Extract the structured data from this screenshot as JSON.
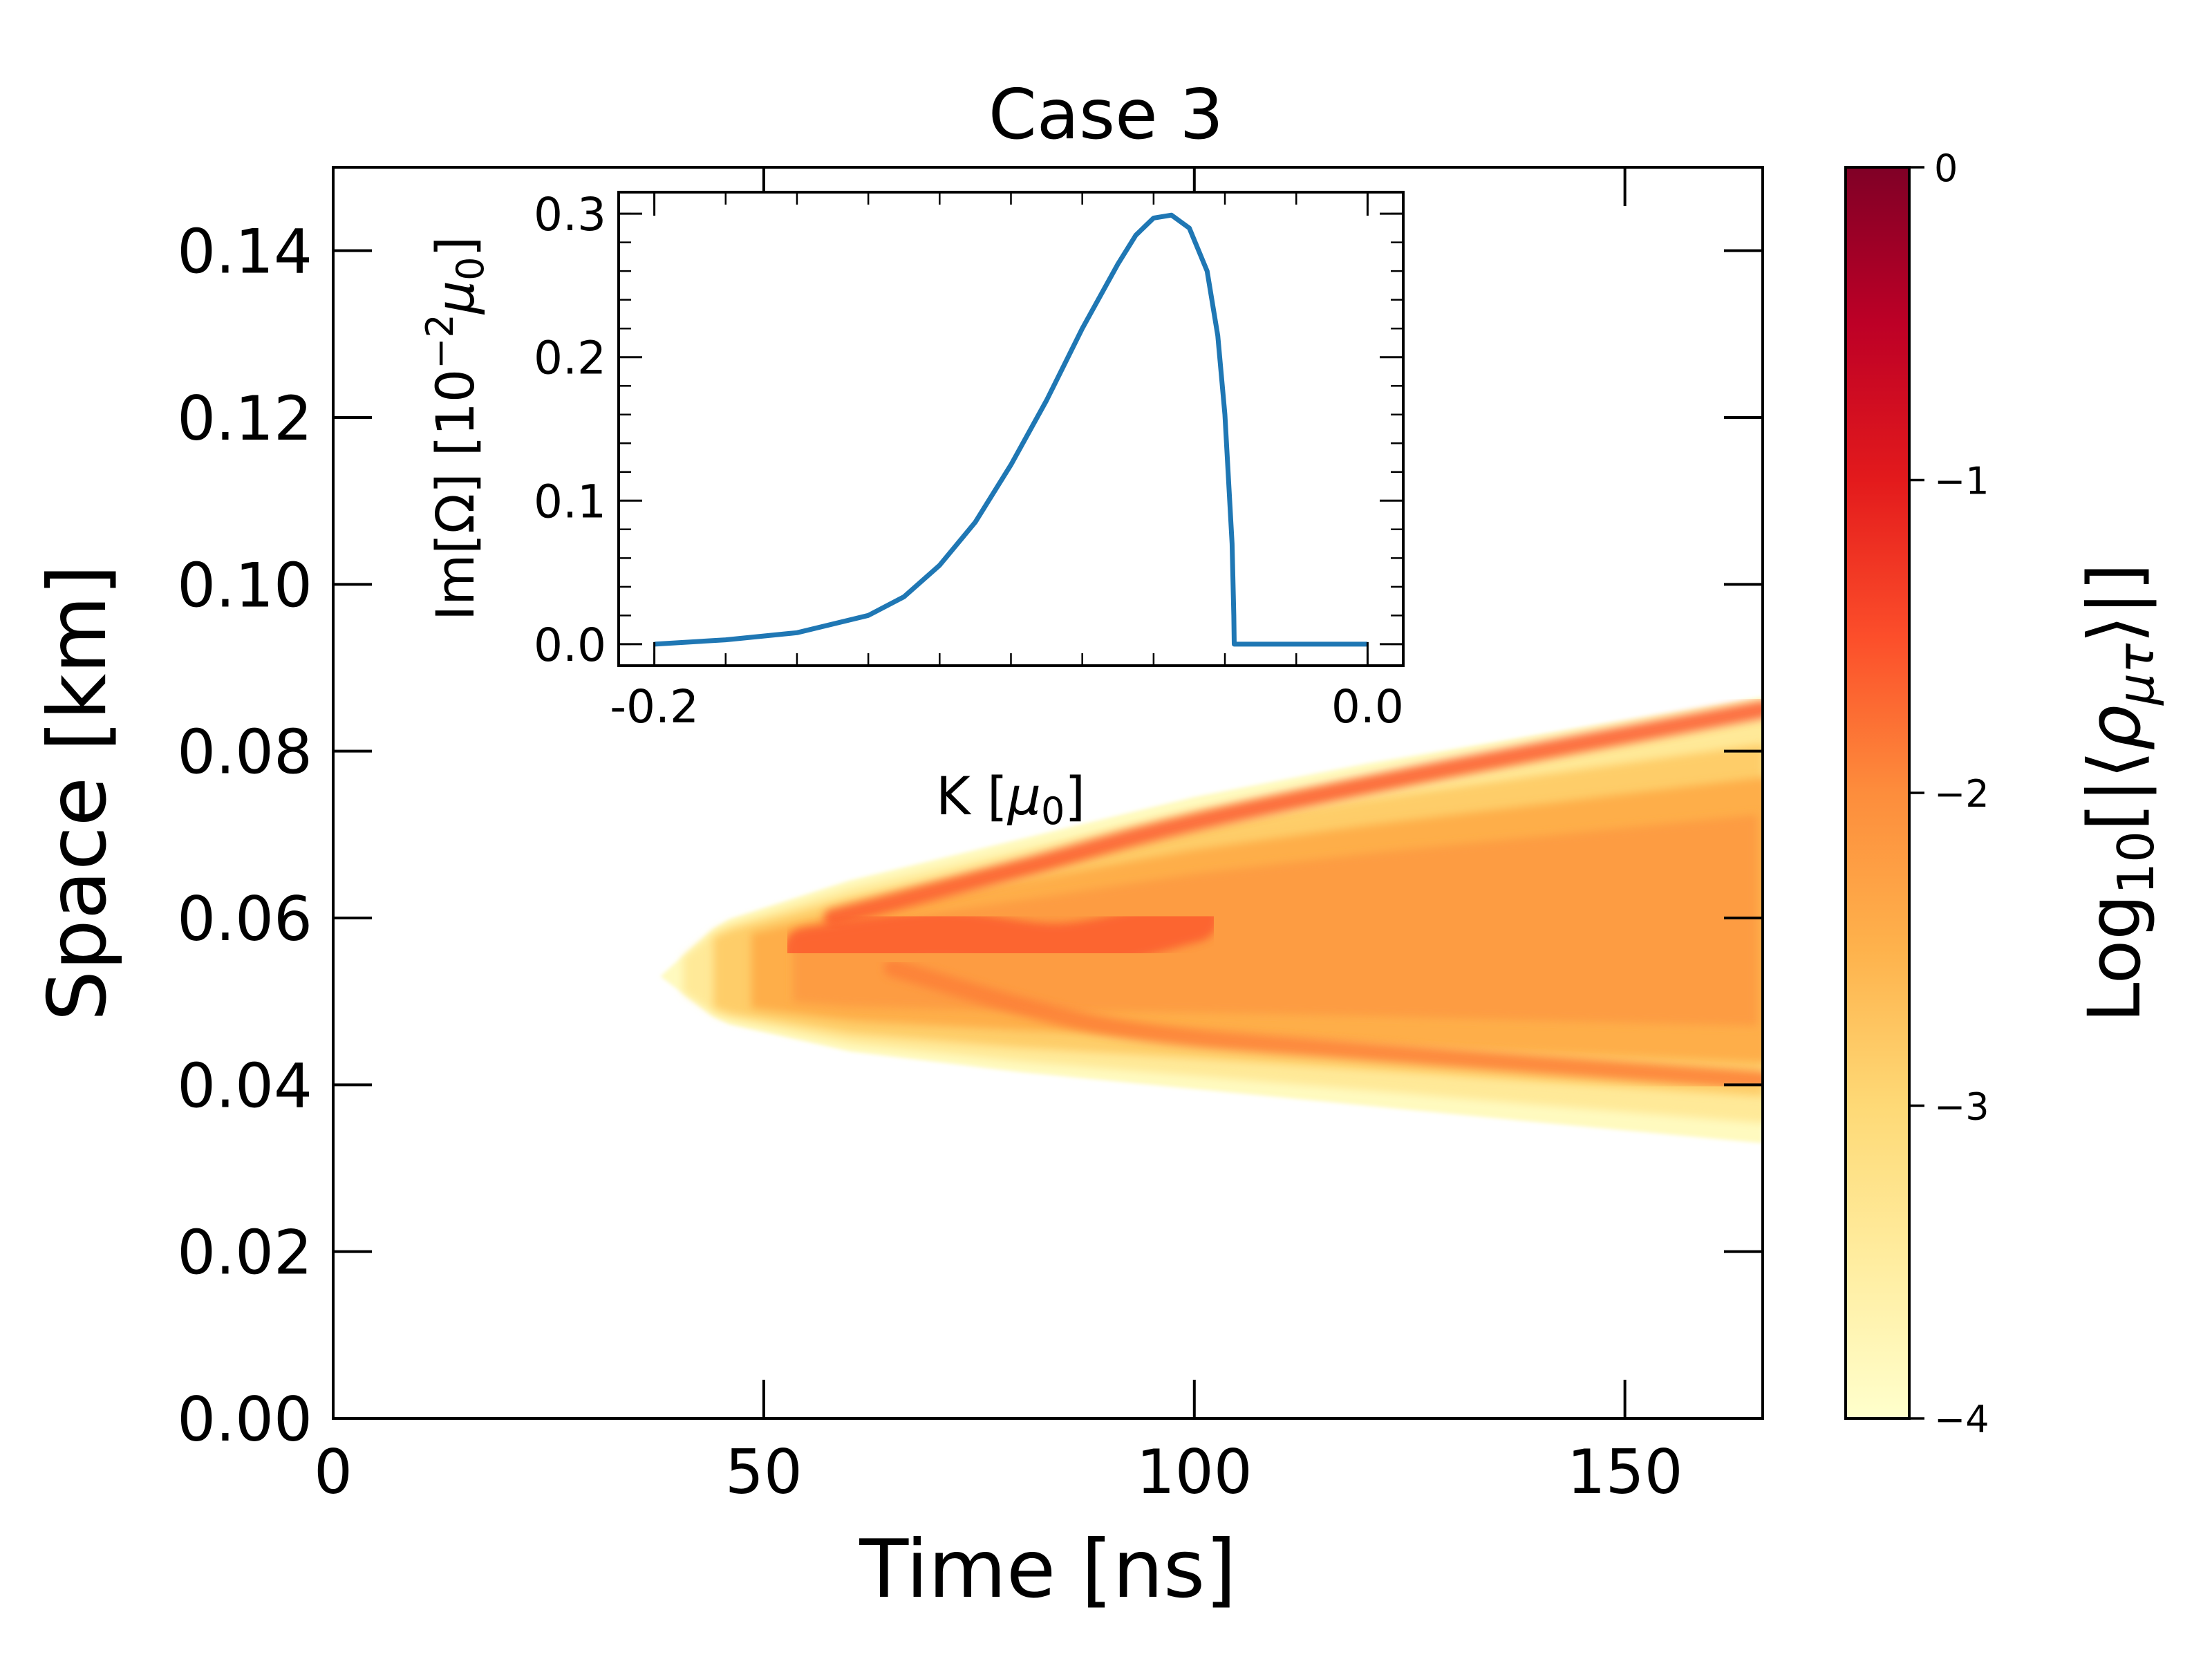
{
  "chart_data": [
    {
      "type": "heatmap",
      "title": "Case 3",
      "xlabel": "Time [ns]",
      "ylabel": "Space [km]",
      "xlim": [
        0,
        166
      ],
      "ylim": [
        0,
        0.15
      ],
      "xticks": [
        0,
        50,
        100,
        150
      ],
      "xtick_labels": [
        "0",
        "50",
        "100",
        "150"
      ],
      "yticks": [
        0.0,
        0.02,
        0.04,
        0.06,
        0.08,
        0.1,
        0.12,
        0.14
      ],
      "ytick_labels": [
        "0.00",
        "0.02",
        "0.04",
        "0.06",
        "0.08",
        "0.10",
        "0.12",
        "0.14"
      ],
      "colorbar": {
        "label": "Log10[|⟨ρμτ⟩|]",
        "label_parts": {
          "log": "Log",
          "base": "10",
          "open": "[|⟨",
          "rho": "ρ",
          "sub": "μτ",
          "close": "⟩|]"
        },
        "range": [
          -4,
          0
        ],
        "ticks": [
          0,
          -1,
          -2,
          -3,
          -4
        ],
        "tick_labels": [
          "0",
          "−1",
          "−2",
          "−3",
          "−4"
        ],
        "colormap": "YlOrRd",
        "colormap_stops": [
          "#ffffcc",
          "#ffeda0",
          "#fed976",
          "#feb24c",
          "#fd8d3c",
          "#fc4e2a",
          "#e31a1c",
          "#bd0026",
          "#800026"
        ]
      },
      "growth_region": {
        "onset_time_ns": 38,
        "onset_space_km": 0.053,
        "upper_edge_km": [
          [
            38,
            0.053
          ],
          [
            45,
            0.0595
          ],
          [
            60,
            0.0645
          ],
          [
            80,
            0.0695
          ],
          [
            100,
            0.0745
          ],
          [
            120,
            0.0785
          ],
          [
            140,
            0.082
          ],
          [
            166,
            0.0865
          ]
        ],
        "lower_edge_km": [
          [
            38,
            0.053
          ],
          [
            45,
            0.0475
          ],
          [
            60,
            0.044
          ],
          [
            80,
            0.0415
          ],
          [
            100,
            0.0395
          ],
          [
            120,
            0.0375
          ],
          [
            140,
            0.0355
          ],
          [
            166,
            0.033
          ]
        ],
        "ridges": [
          {
            "name": "upper-ridge",
            "points": [
              [
                58,
                0.06
              ],
              [
                80,
                0.066
              ],
              [
                100,
                0.0715
              ],
              [
                130,
                0.078
              ],
              [
                166,
                0.085
              ]
            ],
            "log_value": -1.6
          },
          {
            "name": "lower-ridge",
            "points": [
              [
                65,
                0.054
              ],
              [
                90,
                0.047
              ],
              [
                120,
                0.044
              ],
              [
                166,
                0.0405
              ]
            ],
            "log_value": -1.9
          },
          {
            "name": "core",
            "points": [
              [
                55,
                0.056
              ],
              [
                70,
                0.058
              ],
              [
                85,
                0.0565
              ],
              [
                100,
                0.06
              ]
            ],
            "log_value": -1.6
          }
        ]
      }
    },
    {
      "type": "line",
      "name": "inset",
      "xlabel": "K [μ0]",
      "xlabel_parts": {
        "pre": "K [",
        "mu": "μ",
        "sub": "0",
        "post": "]"
      },
      "ylabel": "Im[Ω] [10−2μ0]",
      "ylabel_parts": {
        "pre": "Im[Ω] [10",
        "sup": "−2",
        "mu": "μ",
        "sub": "0",
        "post": "]"
      },
      "xlim": [
        -0.21,
        0.01
      ],
      "ylim": [
        -0.015,
        0.315
      ],
      "xticks": [
        -0.2,
        0.0
      ],
      "xtick_labels": [
        "-0.2",
        "0.0"
      ],
      "yticks": [
        0.0,
        0.1,
        0.2,
        0.3
      ],
      "ytick_labels": [
        "0.0",
        "0.1",
        "0.2",
        "0.3"
      ],
      "line_color": "#1f77b4",
      "series": [
        {
          "name": "Im[Ω]",
          "x": [
            -0.2,
            -0.18,
            -0.16,
            -0.14,
            -0.13,
            -0.12,
            -0.11,
            -0.1,
            -0.09,
            -0.08,
            -0.07,
            -0.065,
            -0.06,
            -0.055,
            -0.05,
            -0.045,
            -0.042,
            -0.04,
            -0.038,
            -0.0375,
            -0.0374,
            -0.02,
            0.0
          ],
          "y": [
            0.0,
            0.003,
            0.008,
            0.02,
            0.033,
            0.055,
            0.085,
            0.125,
            0.17,
            0.22,
            0.265,
            0.285,
            0.297,
            0.299,
            0.29,
            0.26,
            0.215,
            0.16,
            0.07,
            0.02,
            0.0,
            0.0,
            0.0
          ]
        }
      ]
    }
  ]
}
